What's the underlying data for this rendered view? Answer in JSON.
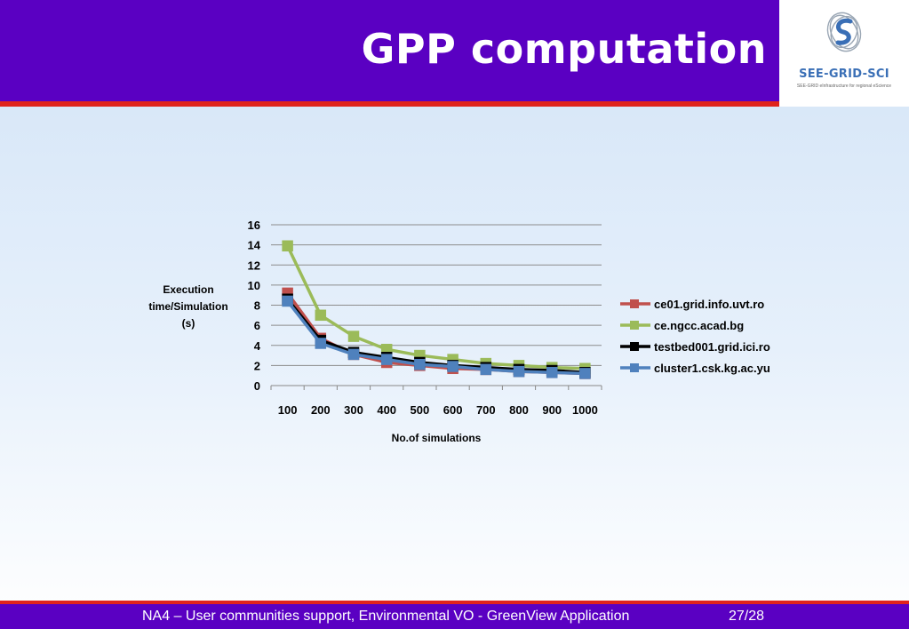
{
  "slide": {
    "title": "GPP computation",
    "logo_text": "SEE-GRID-SCI",
    "logo_subtitle": "SEE-GRID eInfrastructure for regional eScience",
    "footer_text": "NA4 – User communities support, Environmental VO  - GreenView Application",
    "page_number": "27/28"
  },
  "colors": {
    "header": "#5a00c2",
    "accent_red": "#e0231b"
  },
  "chart_data": {
    "type": "line",
    "categories": [
      "100",
      "200",
      "300",
      "400",
      "500",
      "600",
      "700",
      "800",
      "900",
      "1000"
    ],
    "xlabel": "No.of simulations",
    "ylabel": "Execution time/Simulation (s)",
    "ylim": [
      0,
      16
    ],
    "yticks": [
      "0",
      "2",
      "4",
      "6",
      "8",
      "10",
      "12",
      "14",
      "16"
    ],
    "grid": true,
    "legend_position": "right",
    "series": [
      {
        "name": "ce01.grid.info.uvt.ro",
        "color": "#c0504d",
        "values": [
          9.2,
          4.7,
          3.1,
          2.3,
          2.0,
          1.7,
          1.6,
          1.4,
          1.3,
          1.2
        ]
      },
      {
        "name": "ce.ngcc.acad.bg",
        "color": "#9bbb59",
        "values": [
          13.9,
          7.0,
          4.9,
          3.6,
          3.0,
          2.6,
          2.2,
          2.0,
          1.8,
          1.7
        ]
      },
      {
        "name": "testbed001.grid.ici.ro",
        "color": "#000000",
        "values": [
          8.6,
          4.5,
          3.3,
          2.8,
          2.3,
          2.0,
          1.8,
          1.6,
          1.5,
          1.3
        ]
      },
      {
        "name": "cluster1.csk.kg.ac.yu",
        "color": "#4f81bd",
        "values": [
          8.4,
          4.2,
          3.1,
          2.6,
          2.1,
          1.9,
          1.6,
          1.4,
          1.3,
          1.2
        ]
      }
    ]
  }
}
